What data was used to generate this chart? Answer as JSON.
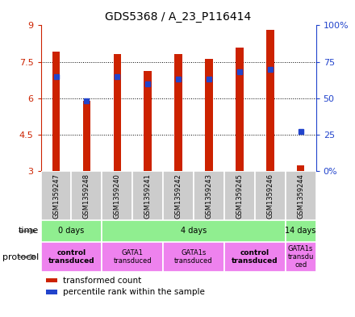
{
  "title": "GDS5368 / A_23_P116414",
  "samples": [
    "GSM1359247",
    "GSM1359248",
    "GSM1359240",
    "GSM1359241",
    "GSM1359242",
    "GSM1359243",
    "GSM1359245",
    "GSM1359246",
    "GSM1359244"
  ],
  "red_values": [
    7.93,
    5.9,
    7.82,
    7.13,
    7.82,
    7.62,
    8.1,
    8.8,
    3.25
  ],
  "blue_values_pct": [
    65,
    48,
    65,
    60,
    63,
    63,
    68,
    70,
    27
  ],
  "ylim_left": [
    3,
    9
  ],
  "ylim_right": [
    0,
    100
  ],
  "yticks_left": [
    3,
    4.5,
    6,
    7.5,
    9
  ],
  "ytick_labels_left": [
    "3",
    "4.5",
    "6",
    "7.5",
    "9"
  ],
  "ytick_labels_right": [
    "0%",
    "25",
    "50",
    "75",
    "100%"
  ],
  "yticks_right": [
    0,
    25,
    50,
    75,
    100
  ],
  "bar_bottom": 3,
  "bar_color": "#cc2200",
  "blue_color": "#2244cc",
  "label_color_left": "#cc2200",
  "label_color_right": "#2244cc",
  "sample_bg_color": "#cccccc",
  "time_groups": [
    {
      "label": "0 days",
      "start": 0,
      "end": 2
    },
    {
      "label": "4 days",
      "start": 2,
      "end": 8
    },
    {
      "label": "14 days",
      "start": 8,
      "end": 9
    }
  ],
  "protocol_groups": [
    {
      "label": "control\ntransduced",
      "start": 0,
      "end": 2,
      "bold": true
    },
    {
      "label": "GATA1\ntransduced",
      "start": 2,
      "end": 4,
      "bold": false
    },
    {
      "label": "GATA1s\ntransduced",
      "start": 4,
      "end": 6,
      "bold": false
    },
    {
      "label": "control\ntransduced",
      "start": 6,
      "end": 8,
      "bold": true
    },
    {
      "label": "GATA1s\ntransdu\nced",
      "start": 8,
      "end": 9,
      "bold": false
    }
  ],
  "time_color": "#90ee90",
  "protocol_color": "#ee82ee"
}
